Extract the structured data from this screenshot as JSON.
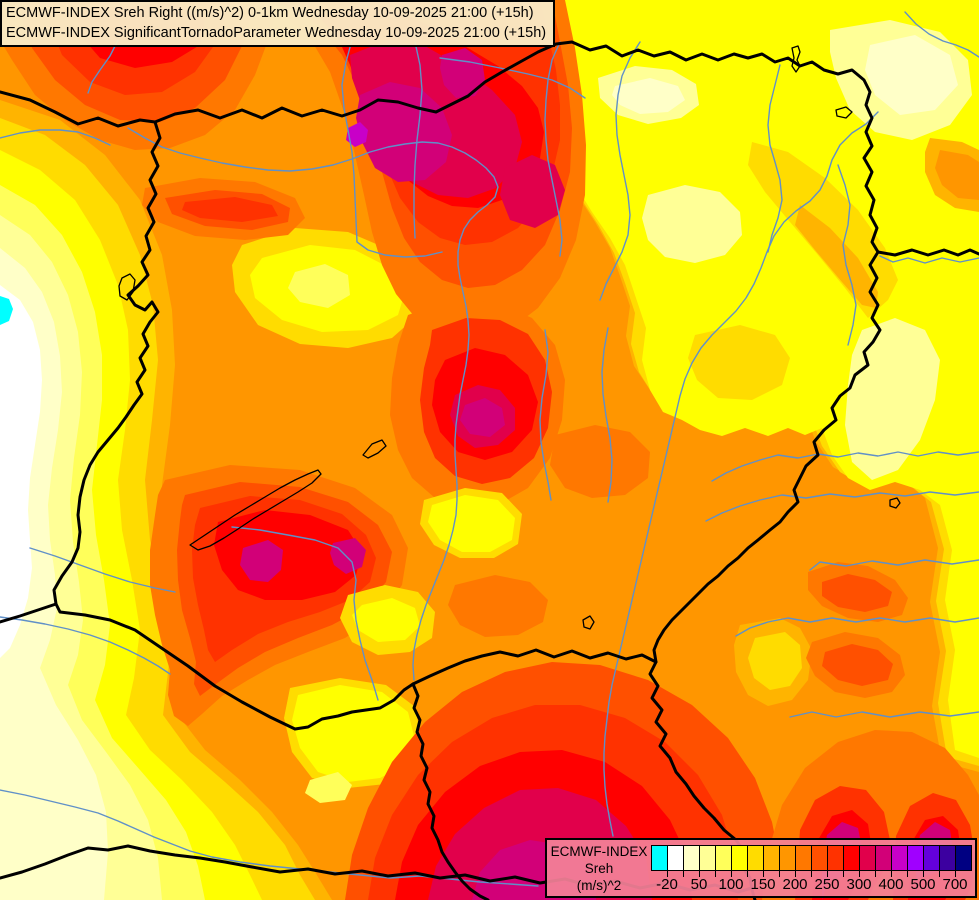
{
  "titles": {
    "line1": "ECMWF-INDEX Sreh Right ((m/s)^2) 0-1km Wednesday 10-09-2025 21:00 (+15h)",
    "line2": "ECMWF-INDEX SignificantTornadoParameter Wednesday 10-09-2025 21:00 (+15h)"
  },
  "legend": {
    "product": "ECMWF-INDEX",
    "parameter": "Sreh",
    "unit": "(m/s)^2",
    "colors": [
      "#00FFFF",
      "#FFFFFF",
      "#FFFFC8",
      "#FFFF96",
      "#FFFF5A",
      "#FFFF00",
      "#FFDC00",
      "#FFB400",
      "#FF9600",
      "#FF7800",
      "#FF5000",
      "#FF3200",
      "#FF0000",
      "#E1004B",
      "#D20078",
      "#C800C8",
      "#A000FF",
      "#6400DC",
      "#3C00A0",
      "#000082"
    ],
    "tick_labels": [
      "-20",
      "50",
      "100",
      "150",
      "200",
      "250",
      "300",
      "400",
      "500",
      "700"
    ],
    "tick_boundaries": [
      1,
      3,
      5,
      7,
      9,
      11,
      13,
      15,
      17,
      19
    ]
  }
}
